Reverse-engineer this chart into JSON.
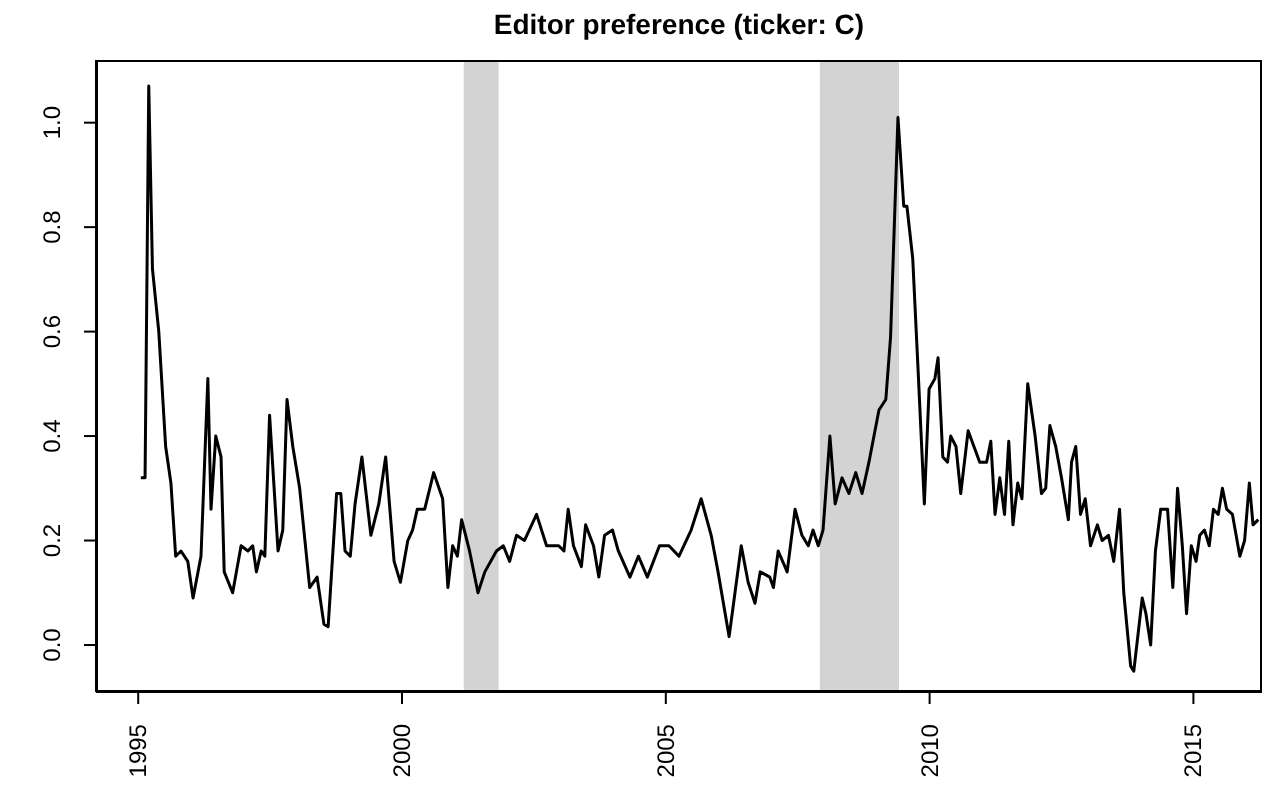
{
  "chart_data": {
    "type": "line",
    "title": "Editor preference (ticker: C)",
    "x": [
      1995.05,
      1995.13,
      1995.2,
      1995.27,
      1995.39,
      1995.52,
      1995.62,
      1995.71,
      1995.81,
      1995.94,
      1996.04,
      1996.19,
      1996.32,
      1996.38,
      1996.47,
      1996.57,
      1996.63,
      1996.79,
      1996.95,
      1997.08,
      1997.17,
      1997.24,
      1997.33,
      1997.4,
      1997.49,
      1997.65,
      1997.74,
      1997.82,
      1997.93,
      1998.06,
      1998.25,
      1998.39,
      1998.52,
      1998.6,
      1998.76,
      1998.84,
      1998.92,
      1999.02,
      1999.11,
      1999.24,
      1999.41,
      1999.56,
      1999.69,
      1999.85,
      1999.97,
      2000.11,
      2000.2,
      2000.29,
      2000.43,
      2000.6,
      2000.77,
      2000.87,
      2000.96,
      2001.05,
      2001.13,
      2001.28,
      2001.44,
      2001.57,
      2001.79,
      2001.92,
      2002.04,
      2002.17,
      2002.32,
      2002.55,
      2002.74,
      2002.97,
      2003.07,
      2003.15,
      2003.25,
      2003.4,
      2003.48,
      2003.63,
      2003.73,
      2003.84,
      2003.99,
      2004.1,
      2004.32,
      2004.48,
      2004.65,
      2004.88,
      2005.06,
      2005.25,
      2005.48,
      2005.67,
      2005.86,
      2005.99,
      2006.2,
      2006.43,
      2006.56,
      2006.69,
      2006.79,
      2006.97,
      2007.04,
      2007.13,
      2007.3,
      2007.45,
      2007.58,
      2007.7,
      2007.79,
      2007.89,
      2007.98,
      2008.11,
      2008.21,
      2008.34,
      2008.47,
      2008.6,
      2008.72,
      2008.85,
      2009.04,
      2009.17,
      2009.26,
      2009.4,
      2009.51,
      2009.57,
      2009.68,
      2009.78,
      2009.9,
      2009.99,
      2010.1,
      2010.16,
      2010.25,
      2010.34,
      2010.4,
      2010.5,
      2010.59,
      2010.73,
      2010.84,
      2010.95,
      2011.08,
      2011.16,
      2011.24,
      2011.33,
      2011.42,
      2011.5,
      2011.58,
      2011.67,
      2011.75,
      2011.86,
      2012.0,
      2012.12,
      2012.2,
      2012.28,
      2012.39,
      2012.5,
      2012.63,
      2012.69,
      2012.77,
      2012.86,
      2012.95,
      2013.05,
      2013.18,
      2013.27,
      2013.39,
      2013.49,
      2013.6,
      2013.68,
      2013.81,
      2013.87,
      2014.03,
      2014.1,
      2014.19,
      2014.28,
      2014.38,
      2014.51,
      2014.61,
      2014.7,
      2014.79,
      2014.87,
      2014.96,
      2015.05,
      2015.12,
      2015.21,
      2015.3,
      2015.38,
      2015.47,
      2015.55,
      2015.63,
      2015.74,
      2015.88,
      2015.97,
      2016.06,
      2016.13,
      2016.23
    ],
    "series": [
      {
        "color": "#000000",
        "values": [
          0.32,
          0.32,
          1.07,
          0.72,
          0.6,
          0.38,
          0.31,
          0.17,
          0.18,
          0.16,
          0.09,
          0.17,
          0.51,
          0.26,
          0.4,
          0.36,
          0.14,
          0.1,
          0.19,
          0.18,
          0.19,
          0.14,
          0.18,
          0.17,
          0.44,
          0.18,
          0.22,
          0.47,
          0.38,
          0.3,
          0.11,
          0.13,
          0.04,
          0.035,
          0.29,
          0.29,
          0.18,
          0.17,
          0.27,
          0.36,
          0.21,
          0.27,
          0.36,
          0.16,
          0.12,
          0.2,
          0.22,
          0.26,
          0.26,
          0.33,
          0.28,
          0.11,
          0.19,
          0.17,
          0.24,
          0.18,
          0.1,
          0.14,
          0.18,
          0.19,
          0.16,
          0.21,
          0.2,
          0.25,
          0.19,
          0.19,
          0.18,
          0.26,
          0.19,
          0.15,
          0.23,
          0.19,
          0.13,
          0.21,
          0.22,
          0.18,
          0.13,
          0.17,
          0.13,
          0.19,
          0.19,
          0.17,
          0.22,
          0.28,
          0.21,
          0.14,
          0.016,
          0.19,
          0.12,
          0.08,
          0.14,
          0.13,
          0.11,
          0.18,
          0.14,
          0.26,
          0.21,
          0.19,
          0.22,
          0.19,
          0.22,
          0.4,
          0.27,
          0.32,
          0.29,
          0.33,
          0.29,
          0.35,
          0.45,
          0.47,
          0.59,
          1.01,
          0.84,
          0.84,
          0.74,
          0.53,
          0.27,
          0.49,
          0.51,
          0.55,
          0.36,
          0.35,
          0.4,
          0.38,
          0.29,
          0.41,
          0.38,
          0.35,
          0.35,
          0.39,
          0.25,
          0.32,
          0.25,
          0.39,
          0.23,
          0.31,
          0.28,
          0.5,
          0.4,
          0.29,
          0.3,
          0.42,
          0.38,
          0.32,
          0.24,
          0.35,
          0.38,
          0.25,
          0.28,
          0.19,
          0.23,
          0.2,
          0.21,
          0.16,
          0.26,
          0.1,
          -0.04,
          -0.05,
          0.09,
          0.06,
          0.0,
          0.18,
          0.26,
          0.26,
          0.11,
          0.3,
          0.19,
          0.06,
          0.19,
          0.16,
          0.21,
          0.22,
          0.19,
          0.26,
          0.25,
          0.3,
          0.26,
          0.25,
          0.17,
          0.2,
          0.31,
          0.23,
          0.24
        ]
      }
    ],
    "bands": [
      {
        "axis": "x",
        "from": 2001.17,
        "to": 2001.83,
        "color": "#d3d3d3"
      },
      {
        "axis": "x",
        "from": 2007.92,
        "to": 2009.42,
        "color": "#d3d3d3"
      }
    ],
    "xlim": [
      1994.2,
      2016.3
    ],
    "xticks": [
      1995,
      2000,
      2005,
      2010,
      2015
    ],
    "ylim": [
      -0.09,
      1.12
    ],
    "yticks": [
      {
        "value": 0,
        "label": "0.0"
      },
      {
        "value": 0.2,
        "label": "0.2"
      },
      {
        "value": 0.4,
        "label": "0.4"
      },
      {
        "value": 0.6,
        "label": "0.6"
      },
      {
        "value": 0.8,
        "label": "0.8"
      },
      {
        "value": 1,
        "label": "1.0"
      }
    ],
    "grid": false,
    "legend": false,
    "marker": "none",
    "line_style": "solid"
  }
}
